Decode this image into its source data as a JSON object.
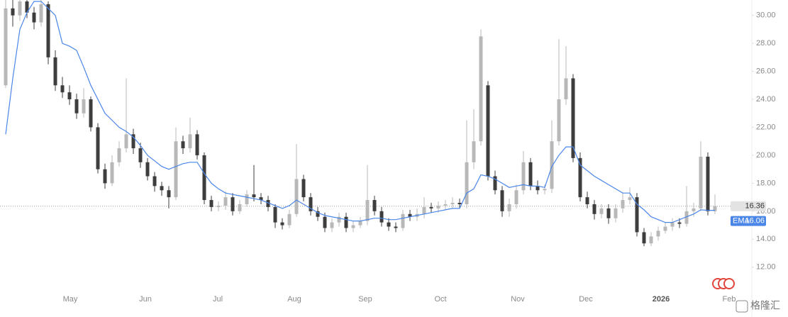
{
  "chart_data": {
    "type": "candlestick",
    "up_color": "#b8b8b8",
    "down_color": "#3d3d3d",
    "open": [
      25.0,
      30.5,
      30.0,
      31.0,
      30.2,
      29.5,
      30.8,
      27.0,
      25.0,
      24.5,
      24.0,
      23.0,
      24.0,
      22.0,
      19.0,
      18.0,
      19.5,
      20.5,
      21.5,
      20.5,
      19.5,
      18.5,
      17.8,
      17.5,
      17.0,
      21.0,
      20.5,
      21.5,
      20.0,
      16.8,
      16.3,
      16.4,
      17.0,
      16.0,
      16.5,
      17.2,
      17.0,
      16.8,
      16.3,
      15.2,
      15.0,
      15.8,
      18.3,
      17.0,
      16.0,
      15.6,
      14.8,
      15.2,
      15.6,
      14.8,
      15.0,
      15.3,
      16.8,
      16.0,
      15.2,
      14.9,
      14.8,
      15.8,
      15.6,
      15.8,
      16.3,
      16.2,
      16.4,
      16.5,
      16.6,
      16.5,
      19.5,
      21.0,
      25.0,
      18.5,
      17.5,
      16.0,
      16.5,
      17.5,
      19.5,
      17.8,
      17.5,
      17.6,
      21.0,
      24.0,
      25.5,
      19.8,
      17.0,
      16.5,
      15.8,
      16.2,
      15.5,
      16.2,
      16.8,
      17.0,
      14.5,
      13.7,
      14.2,
      14.6,
      14.9,
      15.2,
      15.1,
      16.0,
      16.2,
      19.9,
      16.0
    ],
    "high": [
      31.5,
      31.2,
      31.6,
      31.4,
      30.6,
      31.3,
      31.0,
      27.5,
      25.6,
      25.0,
      24.4,
      24.8,
      24.2,
      22.3,
      19.4,
      20.0,
      21.0,
      25.5,
      21.9,
      20.9,
      19.8,
      18.8,
      18.1,
      17.8,
      22.0,
      21.4,
      22.7,
      21.8,
      20.2,
      17.1,
      16.7,
      17.4,
      17.3,
      16.8,
      17.5,
      19.3,
      17.3,
      17.1,
      16.5,
      15.5,
      16.1,
      20.8,
      18.6,
      17.3,
      16.3,
      15.9,
      15.5,
      15.9,
      15.9,
      15.3,
      15.6,
      19.3,
      17.1,
      16.3,
      15.5,
      15.2,
      16.1,
      16.1,
      16.2,
      17.0,
      16.6,
      16.7,
      16.8,
      17.0,
      16.9,
      22.5,
      23.3,
      29.0,
      25.3,
      18.9,
      17.8,
      16.9,
      17.9,
      20.3,
      19.8,
      18.2,
      17.9,
      22.5,
      28.3,
      27.8,
      25.8,
      20.2,
      17.4,
      16.8,
      16.5,
      16.5,
      16.5,
      17.3,
      17.7,
      17.3,
      14.8,
      14.5,
      14.9,
      15.2,
      15.5,
      15.5,
      17.8,
      16.6,
      21.0,
      20.2,
      17.2
    ],
    "low": [
      24.8,
      29.2,
      29.6,
      29.8,
      29.0,
      29.2,
      26.5,
      24.6,
      24.1,
      23.6,
      22.6,
      22.7,
      21.7,
      18.7,
      17.6,
      17.8,
      19.2,
      20.2,
      20.1,
      19.1,
      18.2,
      17.4,
      17.1,
      16.2,
      16.8,
      20.1,
      20.2,
      19.7,
      16.5,
      16.0,
      16.0,
      16.1,
      15.7,
      15.8,
      16.3,
      16.7,
      16.5,
      16.0,
      14.8,
      14.7,
      14.8,
      15.6,
      16.7,
      15.7,
      15.3,
      14.5,
      14.5,
      14.9,
      14.5,
      14.5,
      14.8,
      15.0,
      15.7,
      14.9,
      14.6,
      14.5,
      14.6,
      15.3,
      15.3,
      15.5,
      15.9,
      15.9,
      16.1,
      16.2,
      16.2,
      16.2,
      19.0,
      20.7,
      18.2,
      17.2,
      15.6,
      15.6,
      16.2,
      17.2,
      17.5,
      17.2,
      17.2,
      17.3,
      20.7,
      23.6,
      19.5,
      16.7,
      16.2,
      15.4,
      15.5,
      15.1,
      15.2,
      15.9,
      16.5,
      14.2,
      13.5,
      13.5,
      13.9,
      14.4,
      14.6,
      14.8,
      14.9,
      15.6,
      16.0,
      15.7,
      15.8
    ],
    "close": [
      30.5,
      30.0,
      31.0,
      30.2,
      29.5,
      30.8,
      27.0,
      25.0,
      24.5,
      24.0,
      23.0,
      24.0,
      22.0,
      19.0,
      18.0,
      19.5,
      20.5,
      21.5,
      20.5,
      19.5,
      18.5,
      17.8,
      17.5,
      17.0,
      21.0,
      20.5,
      21.5,
      20.0,
      16.8,
      16.3,
      16.4,
      17.0,
      16.0,
      16.5,
      17.2,
      17.0,
      16.8,
      16.3,
      15.2,
      15.0,
      15.8,
      18.3,
      17.0,
      16.0,
      15.6,
      14.8,
      15.2,
      15.6,
      14.8,
      15.0,
      15.3,
      16.8,
      16.0,
      15.2,
      14.9,
      14.8,
      15.8,
      15.6,
      15.8,
      16.3,
      16.2,
      16.4,
      16.5,
      16.6,
      16.5,
      19.5,
      21.0,
      28.5,
      18.5,
      17.5,
      16.0,
      16.5,
      17.5,
      19.5,
      17.8,
      17.5,
      17.6,
      21.0,
      24.0,
      25.5,
      19.8,
      17.0,
      16.5,
      15.8,
      16.2,
      15.5,
      16.2,
      16.8,
      17.0,
      14.5,
      13.7,
      14.2,
      14.6,
      14.9,
      15.2,
      15.1,
      16.0,
      16.2,
      19.9,
      16.0,
      16.36
    ],
    "series": [
      {
        "name": "EMA",
        "color": "#4a86e8",
        "values": [
          21.5,
          25.5,
          29,
          30.2,
          31,
          31,
          30.5,
          30,
          28,
          27.8,
          27.5,
          26.3,
          25,
          24,
          23,
          22.5,
          22,
          21.7,
          21.3,
          20.7,
          20,
          19.6,
          19.2,
          19,
          19.2,
          19.4,
          19.5,
          19.5,
          18.7,
          18,
          17.6,
          17.3,
          17.2,
          17.1,
          17,
          16.9,
          16.8,
          16.6,
          16.4,
          16.2,
          16.4,
          16.8,
          16.5,
          16.2,
          15.9,
          15.7,
          15.6,
          15.5,
          15.4,
          15.3,
          15.3,
          15.4,
          15.5,
          15.5,
          15.4,
          15.4,
          15.5,
          15.6,
          15.7,
          15.8,
          15.9,
          16,
          16.1,
          16.2,
          16.2,
          17.3,
          17.6,
          18.6,
          18.5,
          18.3,
          18,
          17.7,
          17.8,
          17.9,
          17.8,
          17.8,
          17.7,
          19.2,
          20,
          20.6,
          20.6,
          19.3,
          18.9,
          18.5,
          18.2,
          17.9,
          17.6,
          17.3,
          17.3,
          16.5,
          16.1,
          15.6,
          15.4,
          15.2,
          15.2,
          15.4,
          15.6,
          15.8,
          16.1,
          16.06,
          16.06
        ]
      }
    ],
    "ylim": [
      9.3,
      31.1
    ],
    "yticks": [
      {
        "value": 12,
        "label": "12.00"
      },
      {
        "value": 14,
        "label": "14.00"
      },
      {
        "value": 16,
        "label": "16.00"
      },
      {
        "value": 18,
        "label": "18.00"
      },
      {
        "value": 20,
        "label": "20.00"
      },
      {
        "value": 22,
        "label": "22.00"
      },
      {
        "value": 24,
        "label": "24.00"
      },
      {
        "value": 26,
        "label": "26.00"
      },
      {
        "value": 28,
        "label": "28.00"
      },
      {
        "value": 30,
        "label": "30.00"
      }
    ],
    "x_labels": [
      "May",
      "Jun",
      "Jul",
      "Aug",
      "Sep",
      "Oct",
      "Nov",
      "Dec",
      "2026",
      "Feb"
    ],
    "watermark": "格隆汇"
  }
}
